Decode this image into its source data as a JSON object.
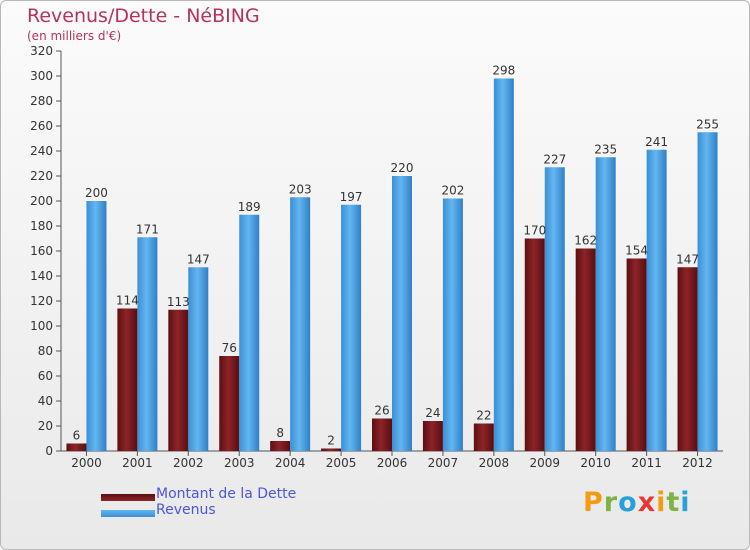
{
  "header": {
    "title": "Revenus/Dette - NéBING",
    "subtitle": "(en milliers d'€)"
  },
  "brand": {
    "text": "Proxiti",
    "letter_colors": [
      "#f39c12",
      "#7cb342",
      "#29a0d8",
      "#e53935",
      "#f39c12",
      "#7cb342",
      "#29a0d8"
    ]
  },
  "chart_data": {
    "type": "bar",
    "categories": [
      "2000",
      "2001",
      "2002",
      "2003",
      "2004",
      "2005",
      "2006",
      "2007",
      "2008",
      "2009",
      "2010",
      "2011",
      "2012"
    ],
    "series": [
      {
        "name": "Montant de la Dette",
        "color": "#7a1a1e",
        "values": [
          6,
          114,
          113,
          76,
          8,
          2,
          26,
          24,
          22,
          170,
          162,
          154,
          147
        ]
      },
      {
        "name": "Revenus",
        "color": "#4ea6e6",
        "values": [
          200,
          171,
          147,
          189,
          203,
          197,
          220,
          202,
          298,
          227,
          235,
          241,
          255
        ]
      }
    ],
    "ylim": [
      0,
      320
    ],
    "ytick_step": 20,
    "grid": false,
    "legend_position": "bottom-left"
  }
}
